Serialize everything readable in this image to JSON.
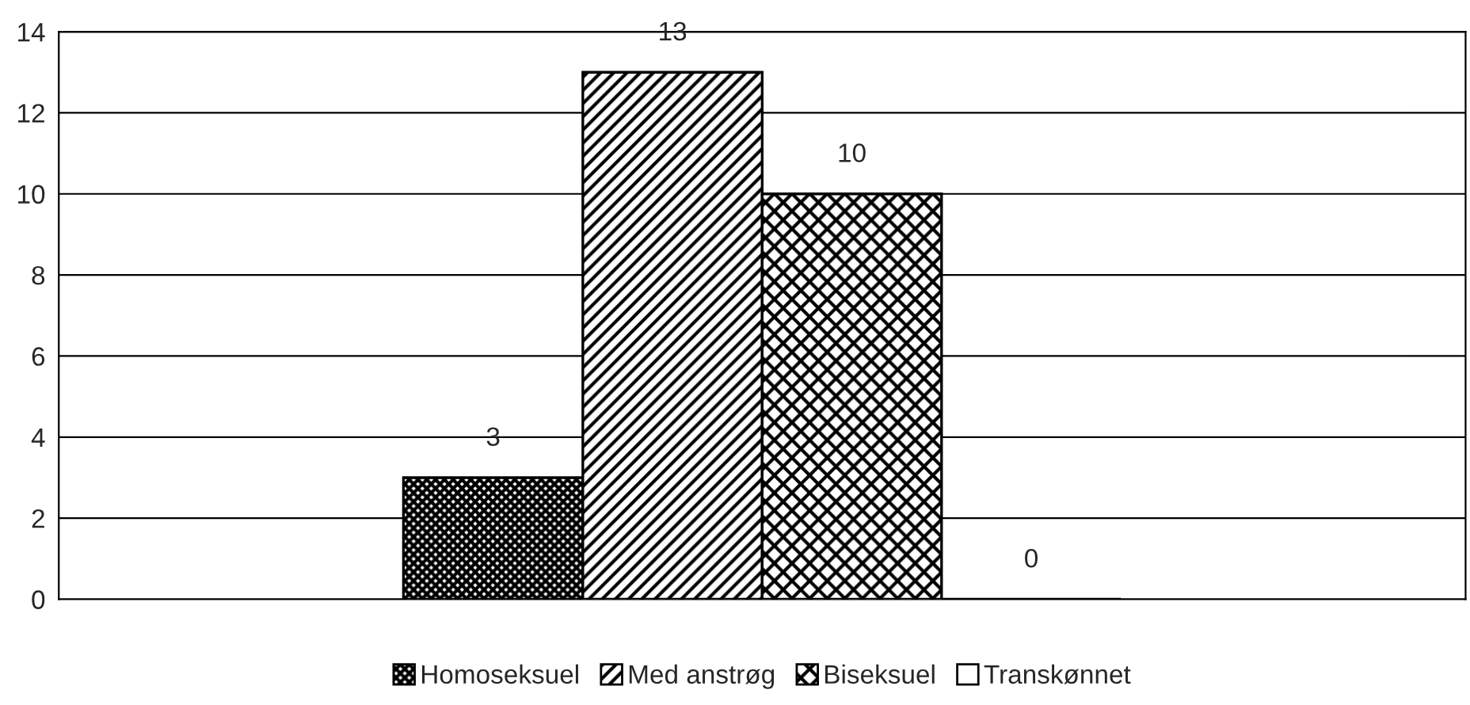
{
  "chart_data": {
    "type": "bar",
    "categories": [
      null
    ],
    "series": [
      {
        "name": "Homoseksuel",
        "color": "#000000",
        "values": [
          3
        ]
      },
      {
        "name": "Med anstrøg",
        "color": "#000000",
        "values": [
          13
        ]
      },
      {
        "name": "Biseksuel",
        "color": "#000000",
        "values": [
          10
        ]
      },
      {
        "name": "Transkønnet",
        "color": "#000000",
        "values": [
          0
        ]
      }
    ],
    "ylim": [
      0,
      14
    ],
    "yticks": [
      0,
      2,
      4,
      6,
      8,
      10,
      12,
      14
    ],
    "grid": "y",
    "legend": "bottom",
    "data_labels": true
  }
}
